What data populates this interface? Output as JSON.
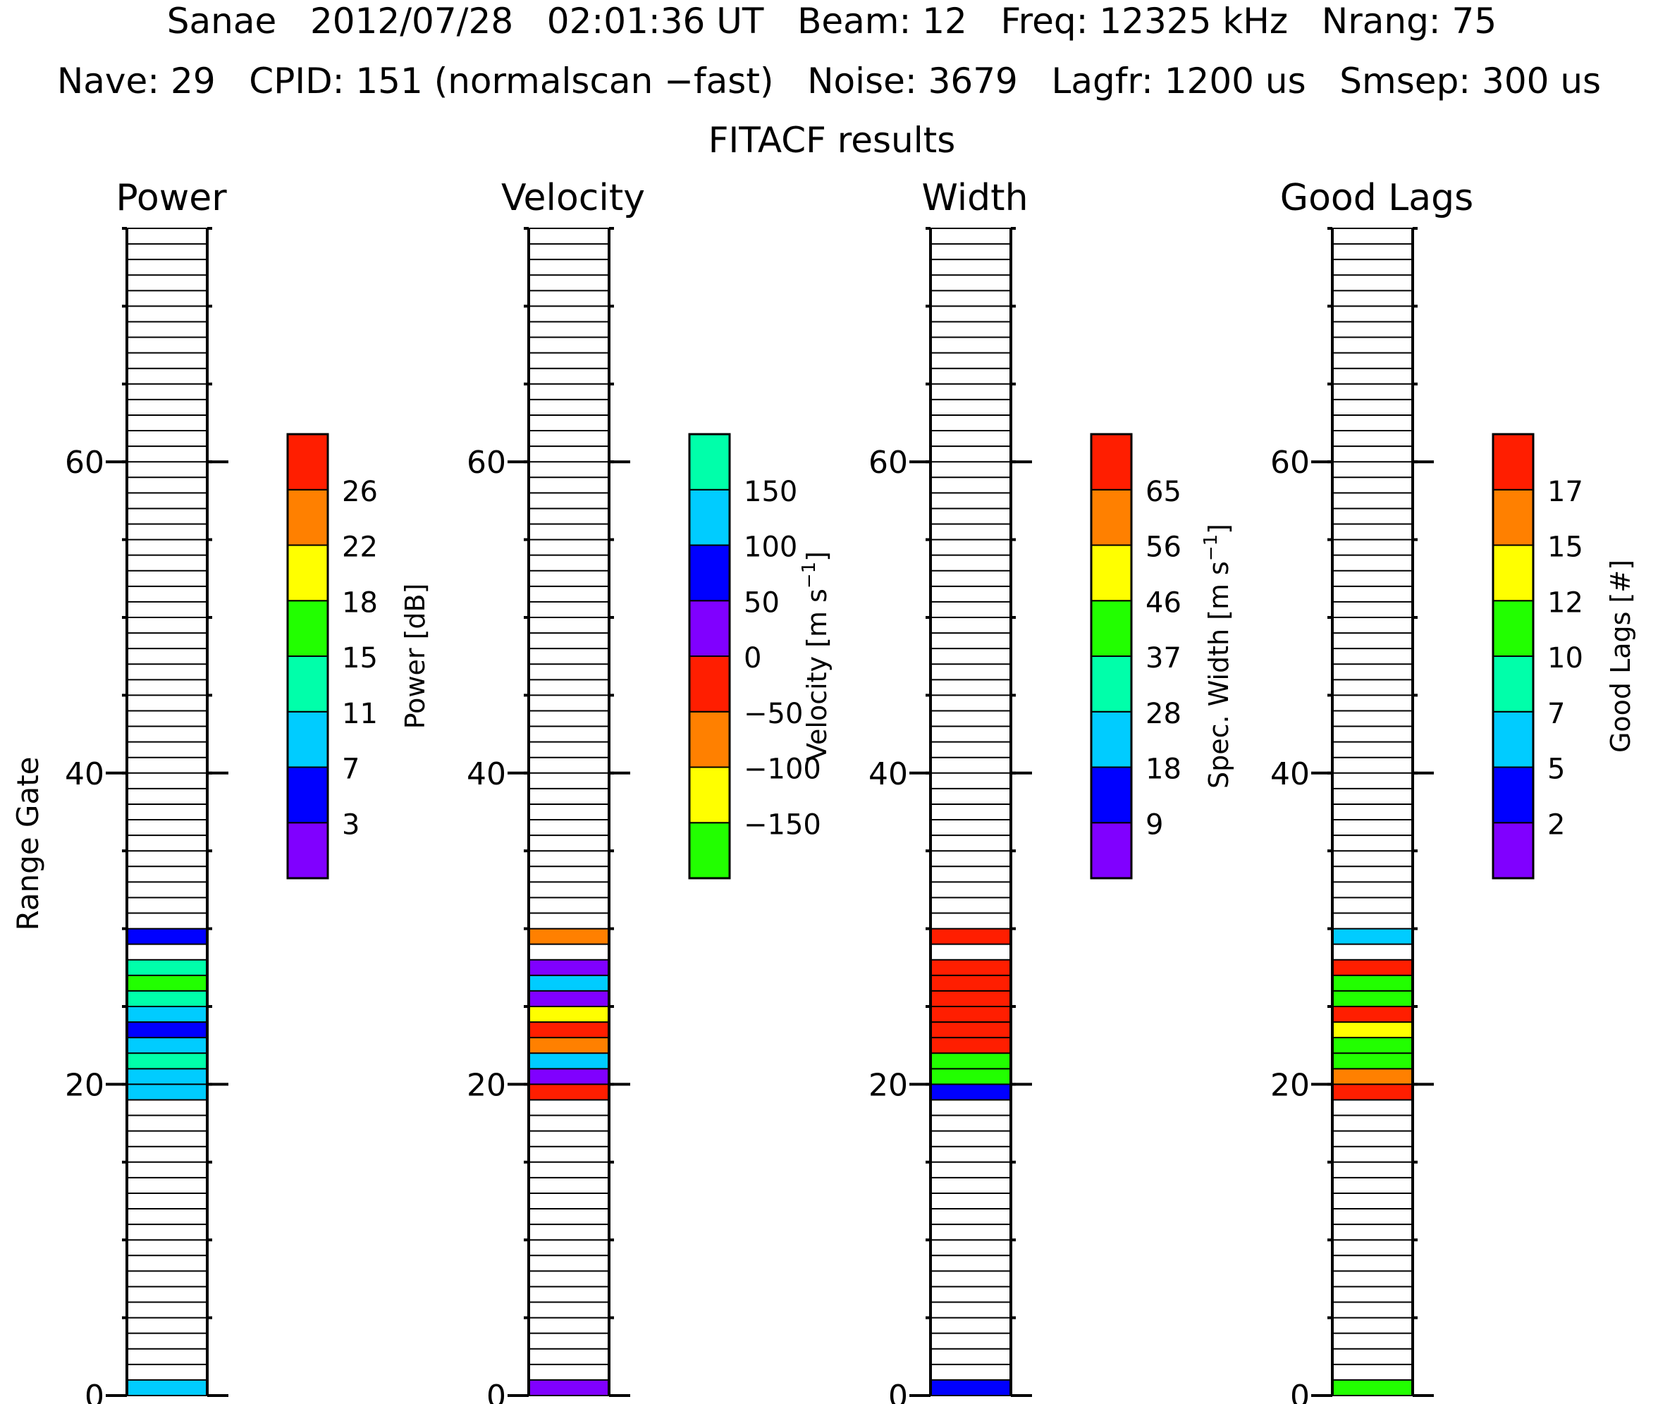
{
  "header": {
    "line1": "Sanae   2012/07/28   02:01:36 UT   Beam: 12   Freq: 12325 kHz   Nrang: 75",
    "line2": "Nave: 29   CPID: 151 (normalscan −fast)   Noise: 3679   Lagfr: 1200 us   Smsep: 300 us",
    "subtitle": "FITACF results"
  },
  "chart_data": [
    {
      "type": "heatmap",
      "title": "Power",
      "ylabel": "Range Gate",
      "ylim": [
        0,
        75
      ],
      "y_ticks": [
        "0",
        "20",
        "40",
        "60"
      ],
      "colorbar": {
        "label": "Power [dB]",
        "colors": [
          "#8000ff",
          "#0000ff",
          "#00ccff",
          "#00ffaa",
          "#22ff00",
          "#ffff00",
          "#ff8000",
          "#ff1e00"
        ],
        "ticks": [
          "3",
          "7",
          "11",
          "15",
          "18",
          "22",
          "26"
        ]
      },
      "cells": [
        {
          "gate": 0,
          "color_index": 2
        },
        {
          "gate": 19,
          "color_index": 2
        },
        {
          "gate": 20,
          "color_index": 2
        },
        {
          "gate": 21,
          "color_index": 3
        },
        {
          "gate": 22,
          "color_index": 2
        },
        {
          "gate": 23,
          "color_index": 1
        },
        {
          "gate": 24,
          "color_index": 2
        },
        {
          "gate": 25,
          "color_index": 3
        },
        {
          "gate": 26,
          "color_index": 4
        },
        {
          "gate": 27,
          "color_index": 3
        },
        {
          "gate": 29,
          "color_index": 1
        }
      ]
    },
    {
      "type": "heatmap",
      "title": "Velocity",
      "ylim": [
        0,
        75
      ],
      "y_ticks": [
        "0",
        "20",
        "40",
        "60"
      ],
      "colorbar": {
        "label": "Velocity [m s",
        "label_sup": "−1",
        "label_end": "]",
        "colors": [
          "#22ff00",
          "#ffff00",
          "#ff8000",
          "#ff1e00",
          "#8000ff",
          "#0000ff",
          "#00ccff",
          "#00ffaa"
        ],
        "ticks": [
          "−150",
          "−100",
          "−50",
          "0",
          "50",
          "100",
          "150"
        ]
      },
      "cells": [
        {
          "gate": 0,
          "color_index": 4
        },
        {
          "gate": 19,
          "color_index": 3
        },
        {
          "gate": 20,
          "color_index": 4
        },
        {
          "gate": 21,
          "color_index": 6
        },
        {
          "gate": 22,
          "color_index": 2
        },
        {
          "gate": 23,
          "color_index": 3
        },
        {
          "gate": 24,
          "color_index": 1
        },
        {
          "gate": 25,
          "color_index": 4
        },
        {
          "gate": 26,
          "color_index": 6
        },
        {
          "gate": 27,
          "color_index": 4
        },
        {
          "gate": 29,
          "color_index": 2
        }
      ]
    },
    {
      "type": "heatmap",
      "title": "Width",
      "ylim": [
        0,
        75
      ],
      "y_ticks": [
        "0",
        "20",
        "40",
        "60"
      ],
      "colorbar": {
        "label": "Spec. Width [m s",
        "label_sup": "−1",
        "label_end": "]",
        "colors": [
          "#8000ff",
          "#0000ff",
          "#00ccff",
          "#00ffaa",
          "#22ff00",
          "#ffff00",
          "#ff8000",
          "#ff1e00"
        ],
        "ticks": [
          "9",
          "18",
          "28",
          "37",
          "46",
          "56",
          "65"
        ]
      },
      "cells": [
        {
          "gate": 0,
          "color_index": 1
        },
        {
          "gate": 19,
          "color_index": 1
        },
        {
          "gate": 20,
          "color_index": 4
        },
        {
          "gate": 21,
          "color_index": 4
        },
        {
          "gate": 22,
          "color_index": 7
        },
        {
          "gate": 23,
          "color_index": 7
        },
        {
          "gate": 24,
          "color_index": 7
        },
        {
          "gate": 25,
          "color_index": 7
        },
        {
          "gate": 26,
          "color_index": 7
        },
        {
          "gate": 27,
          "color_index": 7
        },
        {
          "gate": 29,
          "color_index": 7
        }
      ]
    },
    {
      "type": "heatmap",
      "title": "Good Lags",
      "ylim": [
        0,
        75
      ],
      "y_ticks": [
        "0",
        "20",
        "40",
        "60"
      ],
      "colorbar": {
        "label": "Good Lags [#]",
        "colors": [
          "#8000ff",
          "#0000ff",
          "#00ccff",
          "#00ffaa",
          "#22ff00",
          "#ffff00",
          "#ff8000",
          "#ff1e00"
        ],
        "ticks": [
          "2",
          "5",
          "7",
          "10",
          "12",
          "15",
          "17"
        ]
      },
      "cells": [
        {
          "gate": 0,
          "color_index": 4
        },
        {
          "gate": 19,
          "color_index": 7
        },
        {
          "gate": 20,
          "color_index": 6
        },
        {
          "gate": 21,
          "color_index": 4
        },
        {
          "gate": 22,
          "color_index": 4
        },
        {
          "gate": 23,
          "color_index": 5
        },
        {
          "gate": 24,
          "color_index": 7
        },
        {
          "gate": 25,
          "color_index": 4
        },
        {
          "gate": 26,
          "color_index": 4
        },
        {
          "gate": 27,
          "color_index": 7
        },
        {
          "gate": 29,
          "color_index": 2
        }
      ]
    }
  ]
}
